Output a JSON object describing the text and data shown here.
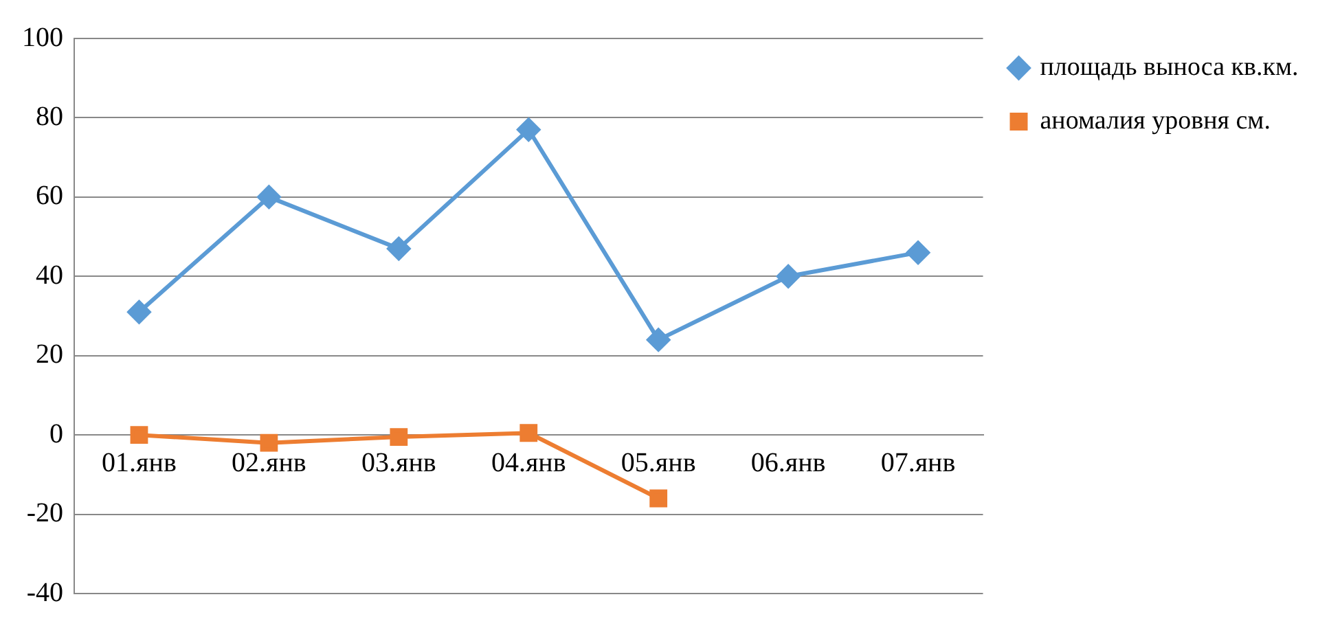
{
  "chart_data": {
    "type": "line",
    "categories": [
      "01.янв",
      "02.янв",
      "03.янв",
      "04.янв",
      "05.янв",
      "06.янв",
      "07.янв"
    ],
    "series": [
      {
        "name": "площадь выноса кв.км.",
        "color": "#5b9bd5",
        "marker": "diamond",
        "values": [
          31,
          60,
          47,
          77,
          24,
          40,
          46
        ]
      },
      {
        "name": "аномалия уровня см.",
        "color": "#ed7d31",
        "marker": "square",
        "values": [
          0,
          -2,
          -0.5,
          0.5,
          -16,
          null,
          null
        ]
      }
    ],
    "ylim": [
      -40,
      100
    ],
    "yticks": [
      -40,
      -20,
      0,
      20,
      40,
      60,
      80,
      100
    ],
    "grid": "y",
    "legend": "right",
    "line_style": "solid"
  }
}
